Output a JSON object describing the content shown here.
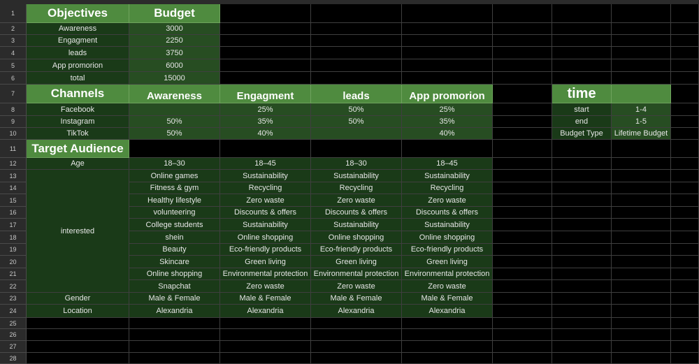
{
  "row_numbers": [
    "1",
    "2",
    "3",
    "4",
    "5",
    "6",
    "7",
    "8",
    "9",
    "10",
    "11",
    "12",
    "13",
    "14",
    "15",
    "16",
    "17",
    "18",
    "19",
    "20",
    "21",
    "22",
    "23",
    "24",
    "25",
    "26",
    "27",
    "28"
  ],
  "objectives": {
    "header": "Objectives",
    "budget_header": "Budget",
    "rows": [
      {
        "name": "Awareness",
        "budget": "3000"
      },
      {
        "name": "Engagment",
        "budget": "2250"
      },
      {
        "name": "leads",
        "budget": "3750"
      },
      {
        "name": "App promorion",
        "budget": "6000"
      },
      {
        "name": "total",
        "budget": "15000"
      }
    ]
  },
  "channels": {
    "header": "Channels",
    "columns": [
      "Awareness",
      "Engagment",
      "leads",
      "App promorion"
    ],
    "rows": [
      {
        "name": "Facebook",
        "values": [
          "",
          "25%",
          "50%",
          "25%"
        ]
      },
      {
        "name": "Instagram",
        "values": [
          "50%",
          "35%",
          "50%",
          "35%"
        ]
      },
      {
        "name": "TikTok",
        "values": [
          "50%",
          "40%",
          "",
          "40%"
        ]
      }
    ]
  },
  "time": {
    "header": "time",
    "rows": [
      {
        "label": "start",
        "value": "1-4"
      },
      {
        "label": "end",
        "value": "1-5"
      },
      {
        "label": "Budget Type",
        "value": "Lifetime Budget"
      }
    ]
  },
  "audience": {
    "header": "Target Audience",
    "age": {
      "label": "Age",
      "values": [
        "18–30",
        "18–45",
        "18–30",
        "18–45"
      ]
    },
    "interested_label": "interested",
    "interests": [
      [
        "Online games",
        "Sustainability",
        "Sustainability",
        "Sustainability"
      ],
      [
        "Fitness & gym",
        "Recycling",
        "Recycling",
        "Recycling"
      ],
      [
        "Healthy lifestyle",
        "Zero waste",
        "Zero waste",
        "Zero waste"
      ],
      [
        "volunteering",
        "Discounts & offers",
        "Discounts & offers",
        "Discounts & offers"
      ],
      [
        "College students",
        "Sustainability",
        "Sustainability",
        "Sustainability"
      ],
      [
        "shein",
        "Online shopping",
        "Online shopping",
        "Online shopping"
      ],
      [
        "Beauty",
        "Eco-friendly products",
        "Eco-friendly products",
        "Eco-friendly products"
      ],
      [
        "Skincare",
        "Green living",
        "Green living",
        "Green living"
      ],
      [
        "Online shopping",
        "Environmental protection",
        "Environmental protection",
        "Environmental protection"
      ],
      [
        "Snapchat",
        "Zero waste",
        "Zero waste",
        "Zero waste"
      ]
    ],
    "gender": {
      "label": "Gender",
      "values": [
        "Male & Female",
        "Male & Female",
        "Male & Female",
        "Male & Female"
      ]
    },
    "location": {
      "label": "Location",
      "values": [
        "Alexandria",
        "Alexandria",
        "Alexandria",
        "Alexandria"
      ]
    }
  },
  "colors": {
    "header_green": "#4f8b3f",
    "dark_green": "#1a3a18",
    "mid_green": "#274d22",
    "background": "#000000"
  }
}
